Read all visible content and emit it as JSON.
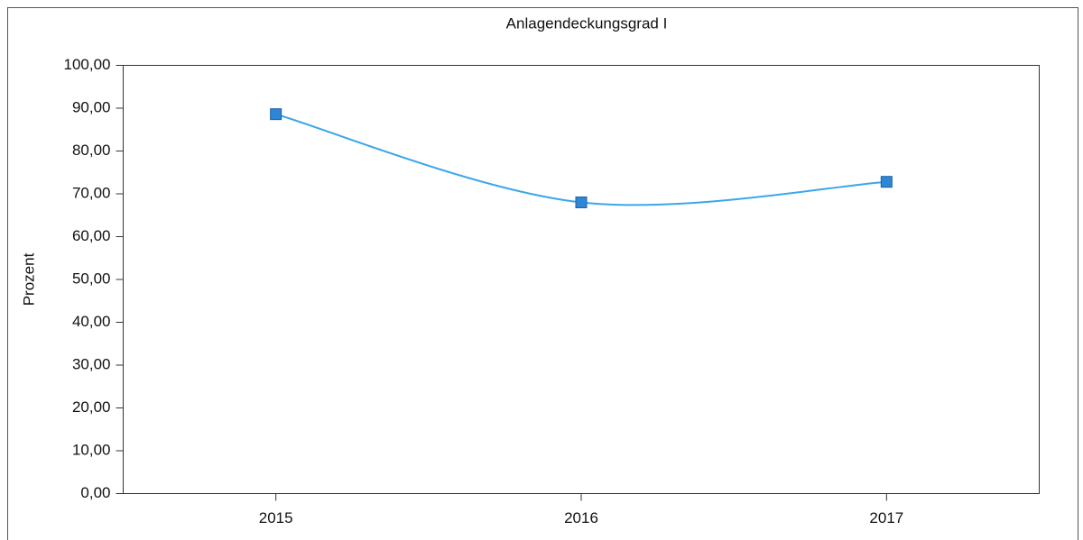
{
  "chart_data": {
    "type": "line",
    "title": "Anlagendeckungsgrad I",
    "y_label": "Prozent",
    "categories": [
      "2015",
      "2016",
      "2017"
    ],
    "series": [
      {
        "name": "Anlagendeckungsgrad I",
        "color": "#2f86d6",
        "line_color": "#3aa6e8",
        "values": [
          88.6,
          68.0,
          72.8
        ]
      }
    ],
    "ylim": [
      0,
      100
    ],
    "yticks": [
      {
        "value": 0,
        "label": "0,00"
      },
      {
        "value": 10,
        "label": "10,00"
      },
      {
        "value": 20,
        "label": "20,00"
      },
      {
        "value": 30,
        "label": "30,00"
      },
      {
        "value": 40,
        "label": "40,00"
      },
      {
        "value": 50,
        "label": "50,00"
      },
      {
        "value": 60,
        "label": "60,00"
      },
      {
        "value": 70,
        "label": "70,00"
      },
      {
        "value": 80,
        "label": "80,00"
      },
      {
        "value": 90,
        "label": "90,00"
      },
      {
        "value": 100,
        "label": "100,00"
      }
    ],
    "smooth": true,
    "grid": false
  }
}
